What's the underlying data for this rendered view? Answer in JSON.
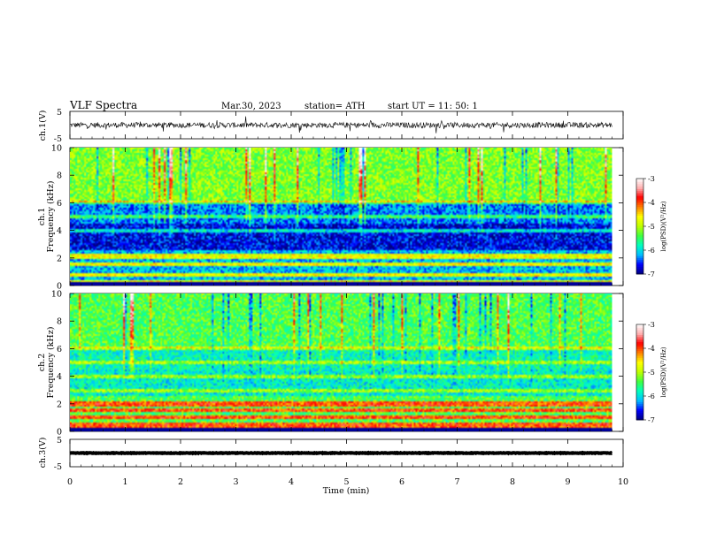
{
  "header": {
    "title": "VLF  Spectra",
    "date": "Mar.30, 2023",
    "station": "station= ATH",
    "start_ut": "start  UT  =    11: 50: 1"
  },
  "colors": {
    "spectrogram_scale": [
      "#000080",
      "#0000ff",
      "#00bfff",
      "#00ffbf",
      "#40ff40",
      "#bfff00",
      "#ffff00",
      "#ff8000",
      "#ff0000",
      "#ffb0b0",
      "#ffffff"
    ],
    "background_floor": "#000080",
    "band_color": "#ffff00",
    "trace_color": "#000000"
  },
  "chart_data": [
    {
      "type": "line",
      "name": "ch1-waveform",
      "ylabel": "ch.1(V)",
      "ylim": [
        -5,
        5
      ],
      "yticks": [
        "5",
        "-5"
      ],
      "xlim": [
        0,
        10
      ],
      "x_end": 9.8,
      "baseline": 0.0,
      "noise_amplitude": 1.0
    },
    {
      "type": "heatmap",
      "name": "ch1-spectrogram",
      "ylabel": "ch.1\nFrequency  (kHz)",
      "ylim": [
        0,
        10
      ],
      "yticks": [
        "0",
        "2",
        "4",
        "6",
        "8",
        "10"
      ],
      "xlim": [
        0,
        10
      ],
      "x_end": 9.8,
      "bands_khz": [
        0.3,
        0.8,
        1.5,
        2.0,
        2.2,
        4.0,
        5.0,
        6.0
      ],
      "colorbar": {
        "label": "log(PSD)(V²/Hz)",
        "range": [
          -7,
          -3
        ],
        "ticks": [
          "-3",
          "-4",
          "-5",
          "-6",
          "-7"
        ]
      }
    },
    {
      "type": "heatmap",
      "name": "ch2-spectrogram",
      "ylabel": "ch.2\nFrequency  (kHz)",
      "ylim": [
        0,
        10
      ],
      "yticks": [
        "0",
        "2",
        "4",
        "6",
        "8",
        "10"
      ],
      "xlim": [
        0,
        10
      ],
      "x_end": 9.8,
      "bands_khz": [
        0.3,
        0.5,
        1.0,
        1.5,
        1.9,
        2.1,
        3.0,
        4.0,
        5.0,
        6.0
      ],
      "colorbar": {
        "label": "log(PSD)(V²/Hz)",
        "range": [
          -7,
          -3
        ],
        "ticks": [
          "-3",
          "-4",
          "-5",
          "-6",
          "-7"
        ]
      }
    },
    {
      "type": "line",
      "name": "ch3-waveform",
      "ylabel": "ch.3(V)",
      "ylim": [
        -5,
        5
      ],
      "yticks": [
        "5",
        "-5"
      ],
      "xlim": [
        0,
        10
      ],
      "x_end": 9.8,
      "baseline": 0.0,
      "noise_amplitude": 0.1
    }
  ],
  "x_axis": {
    "label": "Time  (min)",
    "ticks": [
      "0",
      "1",
      "2",
      "3",
      "4",
      "5",
      "6",
      "7",
      "8",
      "9",
      "10"
    ]
  }
}
